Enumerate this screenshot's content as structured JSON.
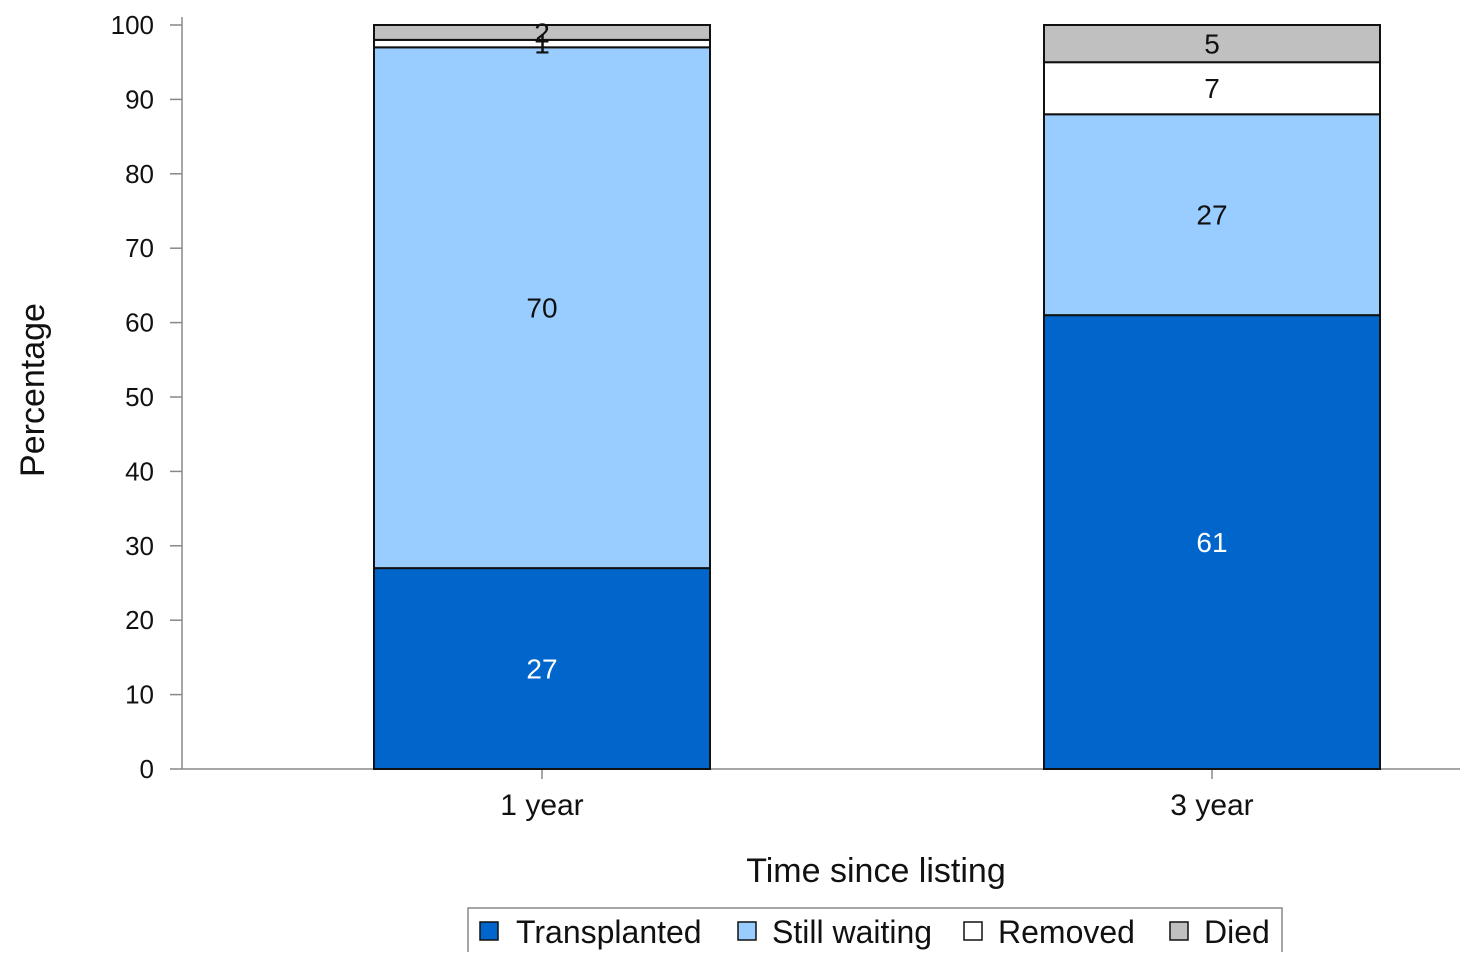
{
  "chart_data": {
    "type": "bar",
    "stacked": true,
    "title": "",
    "xlabel": "Time since listing",
    "ylabel": "Percentage",
    "ylim": [
      0,
      100
    ],
    "yticks": [
      0,
      10,
      20,
      30,
      40,
      50,
      60,
      70,
      80,
      90,
      100
    ],
    "grid": false,
    "legend_position": "bottom",
    "categories": [
      "1 year",
      "3 year"
    ],
    "series": [
      {
        "name": "Transplanted",
        "color": "#0066cc",
        "label_color": "#ffffff",
        "values": [
          27,
          61
        ],
        "labels": [
          "27",
          "61"
        ]
      },
      {
        "name": "Still waiting",
        "color": "#99ccff",
        "label_color": "#111111",
        "values": [
          70,
          27
        ],
        "labels": [
          "70",
          "27"
        ]
      },
      {
        "name": "Removed",
        "color": "#ffffff",
        "label_color": "#111111",
        "values": [
          1,
          7
        ],
        "labels": [
          "1",
          "7"
        ]
      },
      {
        "name": "Died",
        "color": "#c0c0c0",
        "label_color": "#111111",
        "values": [
          2,
          5
        ],
        "labels": [
          "2",
          "5"
        ]
      }
    ]
  }
}
